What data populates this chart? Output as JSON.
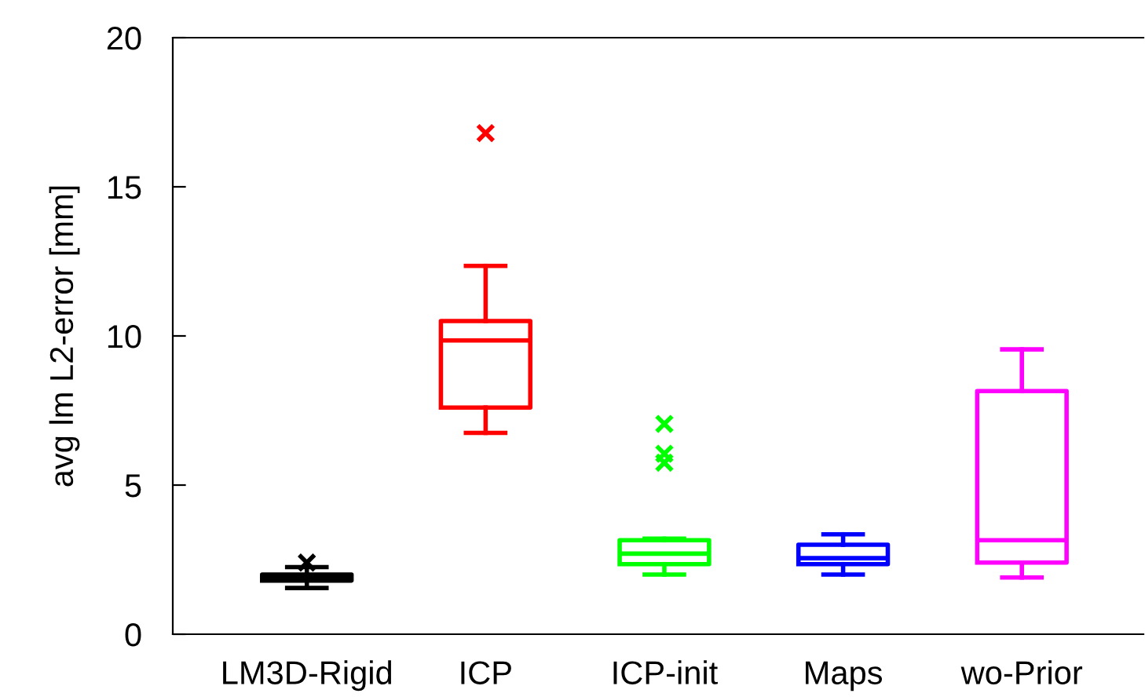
{
  "chart_data": {
    "type": "box",
    "ylabel": "avg lm L2-error [mm]",
    "categories": [
      "LM3D-Rigid",
      "ICP",
      "ICP-init",
      "Maps",
      "wo-Prior"
    ],
    "colors": [
      "#000000",
      "#ff0000",
      "#00ff00",
      "#0000ff",
      "#ff00ff"
    ],
    "boxes": [
      {
        "low": 1.55,
        "q1": 1.8,
        "median": 1.9,
        "q3": 2.0,
        "high": 2.25,
        "outliers": [
          2.4
        ]
      },
      {
        "low": 6.75,
        "q1": 7.6,
        "median": 9.85,
        "q3": 10.5,
        "high": 12.35,
        "outliers": [
          16.8
        ]
      },
      {
        "low": 2.0,
        "q1": 2.35,
        "median": 2.7,
        "q3": 3.15,
        "high": 3.2,
        "outliers": [
          7.05,
          6.05,
          5.75
        ]
      },
      {
        "low": 2.0,
        "q1": 2.35,
        "median": 2.55,
        "q3": 3.0,
        "high": 3.35
      },
      {
        "low": 1.9,
        "q1": 2.4,
        "median": 3.15,
        "q3": 8.15,
        "high": 9.55
      }
    ],
    "ylim": [
      0,
      20
    ],
    "yticks": [
      0,
      5,
      10,
      15,
      20
    ],
    "grid": false,
    "marker": "cross"
  }
}
